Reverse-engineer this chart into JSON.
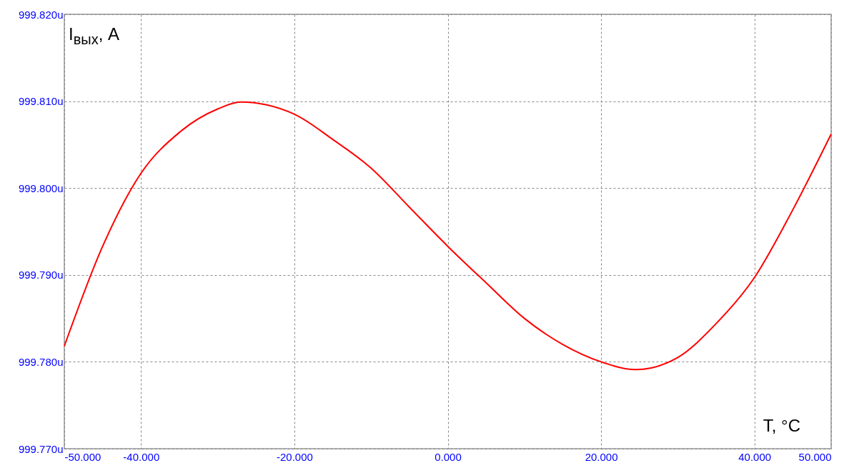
{
  "chart_data": {
    "type": "line",
    "xlabel": "T, °C",
    "ylabel": "I$_{вых}$, A",
    "x": [
      -50,
      -45,
      -40,
      -35,
      -30,
      -27,
      -20,
      -15,
      -10,
      -5,
      0,
      5,
      10,
      15,
      20,
      24.5,
      30,
      35,
      40,
      45,
      50
    ],
    "series": [
      {
        "color": "#ff0000",
        "values": [
          999.7818,
          999.7933,
          999.8017,
          999.8064,
          999.8091,
          999.8099,
          999.8085,
          999.8056,
          999.8023,
          999.7978,
          999.7933,
          999.7891,
          999.785,
          999.782,
          999.78,
          999.7791,
          999.7805,
          999.7844,
          999.7897,
          999.7975,
          999.8062
        ]
      }
    ],
    "xlim": [
      -50,
      50
    ],
    "ylim": [
      999.77,
      999.82
    ],
    "xticks": [
      {
        "value": -50,
        "label": "-50.000"
      },
      {
        "value": -40,
        "label": "-40.000"
      },
      {
        "value": -20,
        "label": "-20.000"
      },
      {
        "value": 0,
        "label": "0.000"
      },
      {
        "value": 20,
        "label": "20.000"
      },
      {
        "value": 40,
        "label": "40.000"
      },
      {
        "value": 50,
        "label": "50.000"
      }
    ],
    "yticks": [
      {
        "value": 999.77,
        "label": "999.770u"
      },
      {
        "value": 999.78,
        "label": "999.780u"
      },
      {
        "value": 999.79,
        "label": "999.790u"
      },
      {
        "value": 999.8,
        "label": "999.800u"
      },
      {
        "value": 999.81,
        "label": "999.810u"
      },
      {
        "value": 999.82,
        "label": "999.820u"
      }
    ],
    "grid": true,
    "line_style": "solid",
    "marker": "none"
  }
}
